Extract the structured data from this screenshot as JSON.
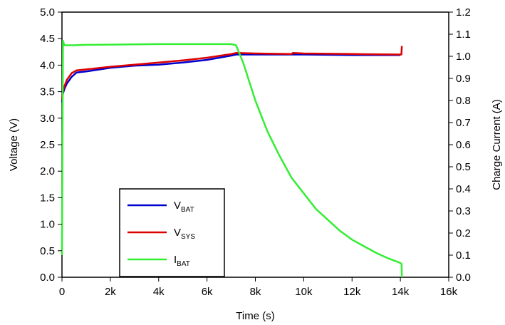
{
  "chart_data": {
    "type": "line",
    "xlabel": "Time (s)",
    "ylabel_left": "Voltage (V)",
    "ylabel_right": "Charge Current (A)",
    "xlim": [
      0,
      16000
    ],
    "ylim_left": [
      0,
      5.0
    ],
    "ylim_right": [
      0,
      1.2
    ],
    "x_ticks": [
      0,
      2000,
      4000,
      6000,
      8000,
      10000,
      12000,
      14000,
      16000
    ],
    "x_tick_labels": [
      "0",
      "2k",
      "4k",
      "6k",
      "8k",
      "10k",
      "12k",
      "14k",
      "16k"
    ],
    "y_left_ticks": [
      0,
      0.5,
      1.0,
      1.5,
      2.0,
      2.5,
      3.0,
      3.5,
      4.0,
      4.5,
      5.0
    ],
    "y_left_tick_labels": [
      "0.0",
      "0.5",
      "1.0",
      "1.5",
      "2.0",
      "2.5",
      "3.0",
      "3.5",
      "4.0",
      "4.5",
      "5.0"
    ],
    "y_right_ticks": [
      0,
      0.1,
      0.2,
      0.3,
      0.4,
      0.5,
      0.6,
      0.7,
      0.8,
      0.9,
      1.0,
      1.1,
      1.2
    ],
    "y_right_tick_labels": [
      "0.0",
      "0.1",
      "0.2",
      "0.3",
      "0.4",
      "0.5",
      "0.6",
      "0.7",
      "0.8",
      "0.9",
      "1.0",
      "1.1",
      "1.2"
    ],
    "grid": false,
    "legend_position": "bottom-left",
    "series": [
      {
        "name": "VBAT",
        "label_main": "V",
        "label_sub": "BAT",
        "color": "#0000cc",
        "axis": "left",
        "points": [
          [
            0,
            3.3
          ],
          [
            30,
            3.45
          ],
          [
            100,
            3.55
          ],
          [
            200,
            3.65
          ],
          [
            400,
            3.78
          ],
          [
            600,
            3.86
          ],
          [
            1000,
            3.88
          ],
          [
            2000,
            3.95
          ],
          [
            3000,
            3.99
          ],
          [
            4000,
            4.01
          ],
          [
            5000,
            4.05
          ],
          [
            6000,
            4.1
          ],
          [
            7000,
            4.18
          ],
          [
            7200,
            4.2
          ],
          [
            8000,
            4.2
          ],
          [
            10000,
            4.2
          ],
          [
            12000,
            4.19
          ],
          [
            14000,
            4.19
          ]
        ]
      },
      {
        "name": "VSYS",
        "label_main": "V",
        "label_sub": "SYS",
        "color": "#dd0000",
        "axis": "left",
        "points": [
          [
            0,
            3.35
          ],
          [
            30,
            3.5
          ],
          [
            100,
            3.6
          ],
          [
            200,
            3.72
          ],
          [
            400,
            3.85
          ],
          [
            600,
            3.9
          ],
          [
            1000,
            3.92
          ],
          [
            2000,
            3.97
          ],
          [
            3000,
            4.01
          ],
          [
            4000,
            4.05
          ],
          [
            5000,
            4.09
          ],
          [
            6000,
            4.14
          ],
          [
            7000,
            4.21
          ],
          [
            7200,
            4.23
          ],
          [
            8000,
            4.22
          ],
          [
            9500,
            4.21
          ],
          [
            9550,
            4.23
          ],
          [
            10000,
            4.22
          ],
          [
            12000,
            4.21
          ],
          [
            14000,
            4.2
          ],
          [
            14040,
            4.2
          ],
          [
            14060,
            4.36
          ]
        ]
      },
      {
        "name": "IBAT",
        "label_main": "I",
        "label_sub": "BAT",
        "color": "#33ee33",
        "axis": "right",
        "points": [
          [
            0,
            0.1
          ],
          [
            40,
            1.07
          ],
          [
            100,
            1.05
          ],
          [
            500,
            1.05
          ],
          [
            1000,
            1.052
          ],
          [
            2000,
            1.053
          ],
          [
            3000,
            1.054
          ],
          [
            4000,
            1.055
          ],
          [
            5000,
            1.055
          ],
          [
            6000,
            1.055
          ],
          [
            7000,
            1.055
          ],
          [
            7200,
            1.05
          ],
          [
            7500,
            0.97
          ],
          [
            8000,
            0.8
          ],
          [
            8500,
            0.66
          ],
          [
            9000,
            0.55
          ],
          [
            9500,
            0.45
          ],
          [
            10000,
            0.38
          ],
          [
            10500,
            0.31
          ],
          [
            11000,
            0.26
          ],
          [
            11500,
            0.21
          ],
          [
            12000,
            0.17
          ],
          [
            12500,
            0.14
          ],
          [
            13000,
            0.11
          ],
          [
            13500,
            0.085
          ],
          [
            14000,
            0.065
          ],
          [
            14050,
            0.06
          ],
          [
            14060,
            0.0
          ]
        ]
      }
    ]
  }
}
